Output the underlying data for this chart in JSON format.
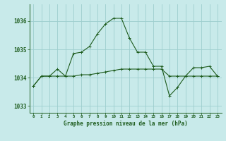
{
  "line2_x": [
    0,
    1,
    2,
    3,
    4,
    5,
    6,
    7,
    8,
    9,
    10,
    11,
    12,
    13,
    14,
    15,
    16,
    17,
    18,
    19,
    20,
    21,
    22,
    23
  ],
  "line2_y": [
    1033.7,
    1034.05,
    1034.05,
    1034.3,
    1034.05,
    1034.85,
    1034.9,
    1035.1,
    1035.55,
    1035.9,
    1036.1,
    1036.1,
    1035.4,
    1034.9,
    1034.9,
    1034.4,
    1034.4,
    1033.35,
    1033.65,
    1034.05,
    1034.35,
    1034.35,
    1034.4,
    1034.05
  ],
  "line1_x": [
    0,
    1,
    2,
    3,
    4,
    5,
    6,
    7,
    8,
    9,
    10,
    11,
    12,
    13,
    14,
    15,
    16,
    17,
    18,
    19,
    20,
    21,
    22,
    23
  ],
  "line1_y": [
    1033.7,
    1034.05,
    1034.05,
    1034.05,
    1034.05,
    1034.05,
    1034.1,
    1034.1,
    1034.15,
    1034.2,
    1034.25,
    1034.3,
    1034.3,
    1034.3,
    1034.3,
    1034.3,
    1034.3,
    1034.05,
    1034.05,
    1034.05,
    1034.05,
    1034.05,
    1034.05,
    1034.05
  ],
  "bg_color": "#c8eaea",
  "line_color": "#1e5c1e",
  "grid_color": "#9ecece",
  "xlabel": "Graphe pression niveau de la mer (hPa)",
  "yticks": [
    1033,
    1034,
    1035,
    1036
  ],
  "ylim": [
    1032.75,
    1036.6
  ],
  "xlim": [
    -0.5,
    23.5
  ],
  "xticks": [
    0,
    1,
    2,
    3,
    4,
    5,
    6,
    7,
    8,
    9,
    10,
    11,
    12,
    13,
    14,
    15,
    16,
    17,
    18,
    19,
    20,
    21,
    22,
    23
  ]
}
